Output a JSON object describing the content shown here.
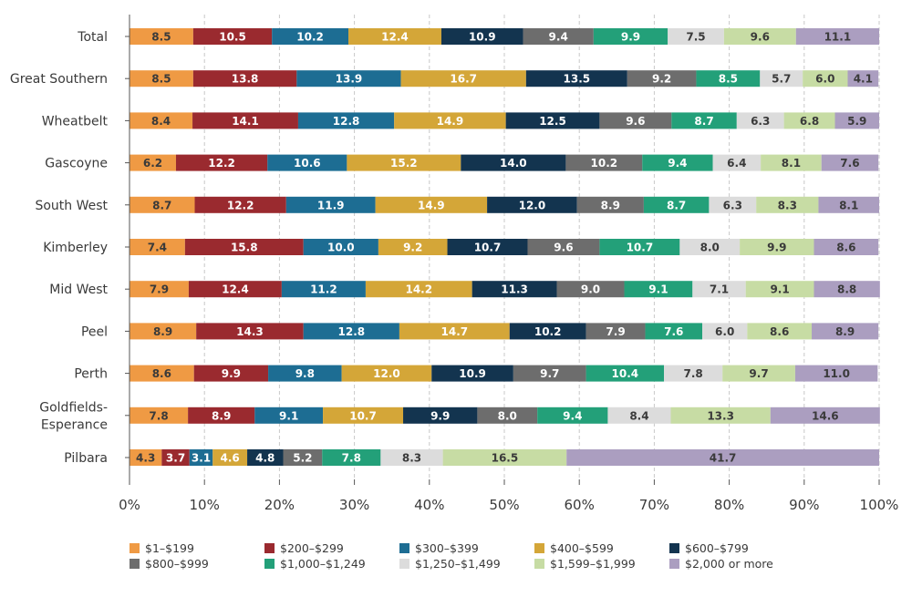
{
  "chart_data": {
    "type": "bar",
    "orientation": "horizontal",
    "stacked": true,
    "title": "",
    "xlabel": "",
    "ylabel": "",
    "xlim": [
      0,
      100
    ],
    "x_ticks": [
      "0%",
      "10%",
      "20%",
      "30%",
      "40%",
      "50%",
      "60%",
      "70%",
      "80%",
      "90%",
      "100%"
    ],
    "grid": true,
    "legend_position": "bottom",
    "categories": [
      "Total",
      "Great Southern",
      "Wheatbelt",
      "Gascoyne",
      "South West",
      "Kimberley",
      "Mid West",
      "Peel",
      "Perth",
      "Goldfields-Esperance",
      "Pilbara"
    ],
    "category_display": [
      [
        "Total"
      ],
      [
        "Great Southern"
      ],
      [
        "Wheatbelt"
      ],
      [
        "Gascoyne"
      ],
      [
        "South West"
      ],
      [
        "Kimberley"
      ],
      [
        "Mid West"
      ],
      [
        "Peel"
      ],
      [
        "Perth"
      ],
      [
        "Goldfields-",
        "Esperance"
      ],
      [
        "Pilbara"
      ]
    ],
    "series": [
      {
        "name": "$1–$199",
        "color": "#ef9a44",
        "label_color": "#3a3a3a",
        "values": [
          8.5,
          8.5,
          8.4,
          6.2,
          8.7,
          7.4,
          7.9,
          8.9,
          8.6,
          7.8,
          4.3
        ]
      },
      {
        "name": "$200–$299",
        "color": "#9a2a2f",
        "label_color": "#ffffff",
        "values": [
          10.5,
          13.8,
          14.1,
          12.2,
          12.2,
          15.8,
          12.4,
          14.3,
          9.9,
          8.9,
          3.7
        ]
      },
      {
        "name": "$300–$399",
        "color": "#1d6d93",
        "label_color": "#ffffff",
        "values": [
          10.2,
          13.9,
          12.8,
          10.6,
          11.9,
          10.0,
          11.2,
          12.8,
          9.8,
          9.1,
          3.1
        ]
      },
      {
        "name": "$400–$599",
        "color": "#d4a638",
        "label_color": "#ffffff",
        "values": [
          12.4,
          16.7,
          14.9,
          15.2,
          14.9,
          9.2,
          14.2,
          14.7,
          12.0,
          10.7,
          4.6
        ]
      },
      {
        "name": "$600–$799",
        "color": "#13344f",
        "label_color": "#ffffff",
        "values": [
          10.9,
          13.5,
          12.5,
          14.0,
          12.0,
          10.7,
          11.3,
          10.2,
          10.9,
          9.9,
          4.8
        ]
      },
      {
        "name": "$800–$999",
        "color": "#6d6d6d",
        "label_color": "#ffffff",
        "values": [
          9.4,
          9.2,
          9.6,
          10.2,
          8.9,
          9.6,
          9.0,
          7.9,
          9.7,
          8.0,
          5.2
        ]
      },
      {
        "name": "$1,000–$1,249",
        "color": "#23a079",
        "label_color": "#ffffff",
        "values": [
          9.9,
          8.5,
          8.7,
          9.4,
          8.7,
          10.7,
          9.1,
          7.6,
          10.4,
          9.4,
          7.8
        ]
      },
      {
        "name": "$1,250–$1,499",
        "color": "#dcdcdc",
        "label_color": "#3a3a3a",
        "values": [
          7.5,
          5.7,
          6.3,
          6.4,
          6.3,
          8.0,
          7.1,
          6.0,
          7.8,
          8.4,
          8.3
        ]
      },
      {
        "name": "$1,599–$1,999",
        "color": "#c7dca4",
        "label_color": "#3a3a3a",
        "values": [
          9.6,
          6.0,
          6.8,
          8.1,
          8.3,
          9.9,
          9.1,
          8.6,
          9.7,
          13.3,
          16.5
        ]
      },
      {
        "name": "$2,000 or more",
        "color": "#ab9ec0",
        "label_color": "#3a3a3a",
        "values": [
          11.1,
          4.1,
          5.9,
          7.6,
          8.1,
          8.6,
          8.8,
          8.9,
          11.0,
          14.6,
          41.7
        ]
      }
    ]
  }
}
